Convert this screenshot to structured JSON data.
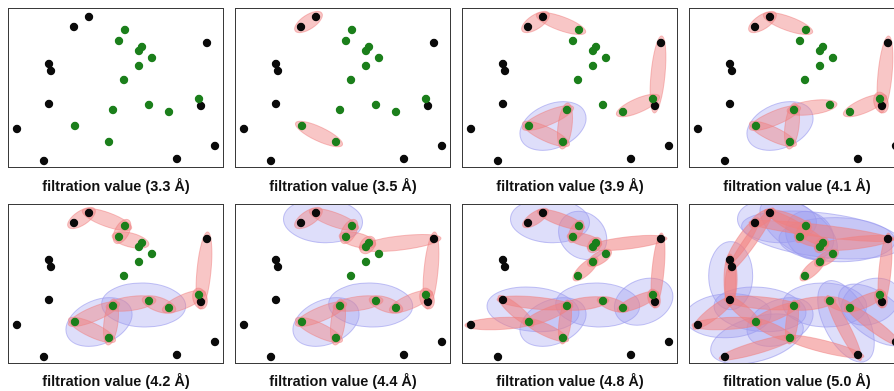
{
  "panels": [
    {
      "caption": "filtration value (3.3 Å)"
    },
    {
      "caption": "filtration value (3.5 Å)"
    },
    {
      "caption": "filtration value (3.9 Å)"
    },
    {
      "caption": "filtration value (4.1 Å)"
    },
    {
      "caption": "filtration value (4.2 Å)"
    },
    {
      "caption": "filtration value (4.4 Å)"
    },
    {
      "caption": "filtration value (4.8 Å)"
    },
    {
      "caption": "filtration value (5.0 Å)"
    }
  ],
  "colors": {
    "black_atom": "#0a0a0a",
    "green_atom": "#1b7f1b",
    "edge_fill": "#f08080",
    "triangle_fill": "#9999ee",
    "border": "#3a3a3a"
  }
}
